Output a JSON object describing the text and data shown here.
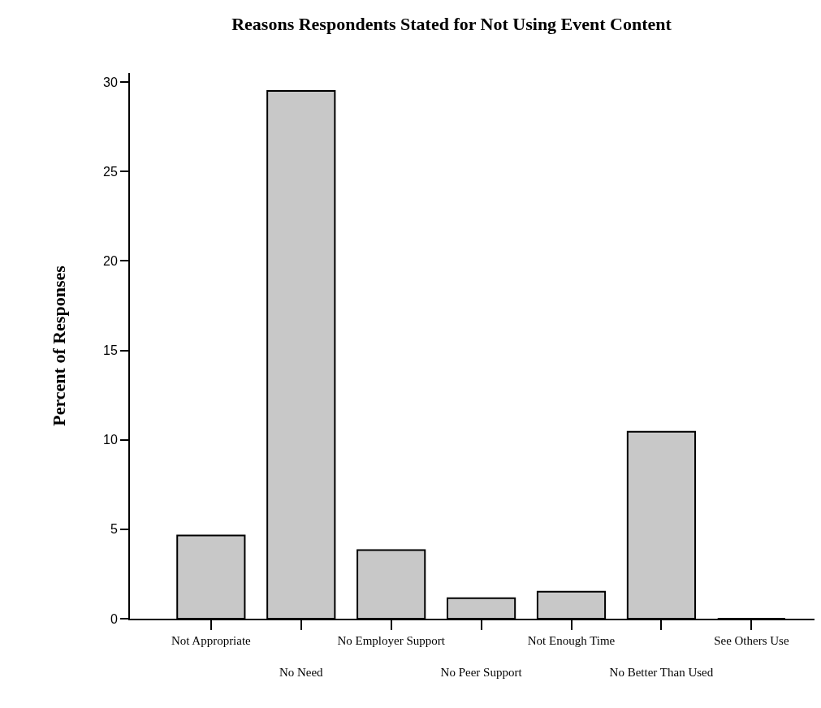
{
  "chart_data": {
    "type": "bar",
    "title": "Reasons Respondents Stated for Not Using Event Content",
    "ylabel": "Percent of Responses",
    "categories": [
      "Not Appropriate",
      "No Need",
      "No Employer Support",
      "No Peer Support",
      "Not Enough Time",
      "No Better Than Used",
      "See Others Use"
    ],
    "values": [
      4.65,
      29.5,
      3.84,
      1.15,
      1.51,
      10.45,
      0
    ],
    "color": "#c8c8c8",
    "ylim": [
      0,
      30.5
    ],
    "yticks": [
      0,
      5,
      10,
      15,
      20,
      25,
      30
    ]
  }
}
